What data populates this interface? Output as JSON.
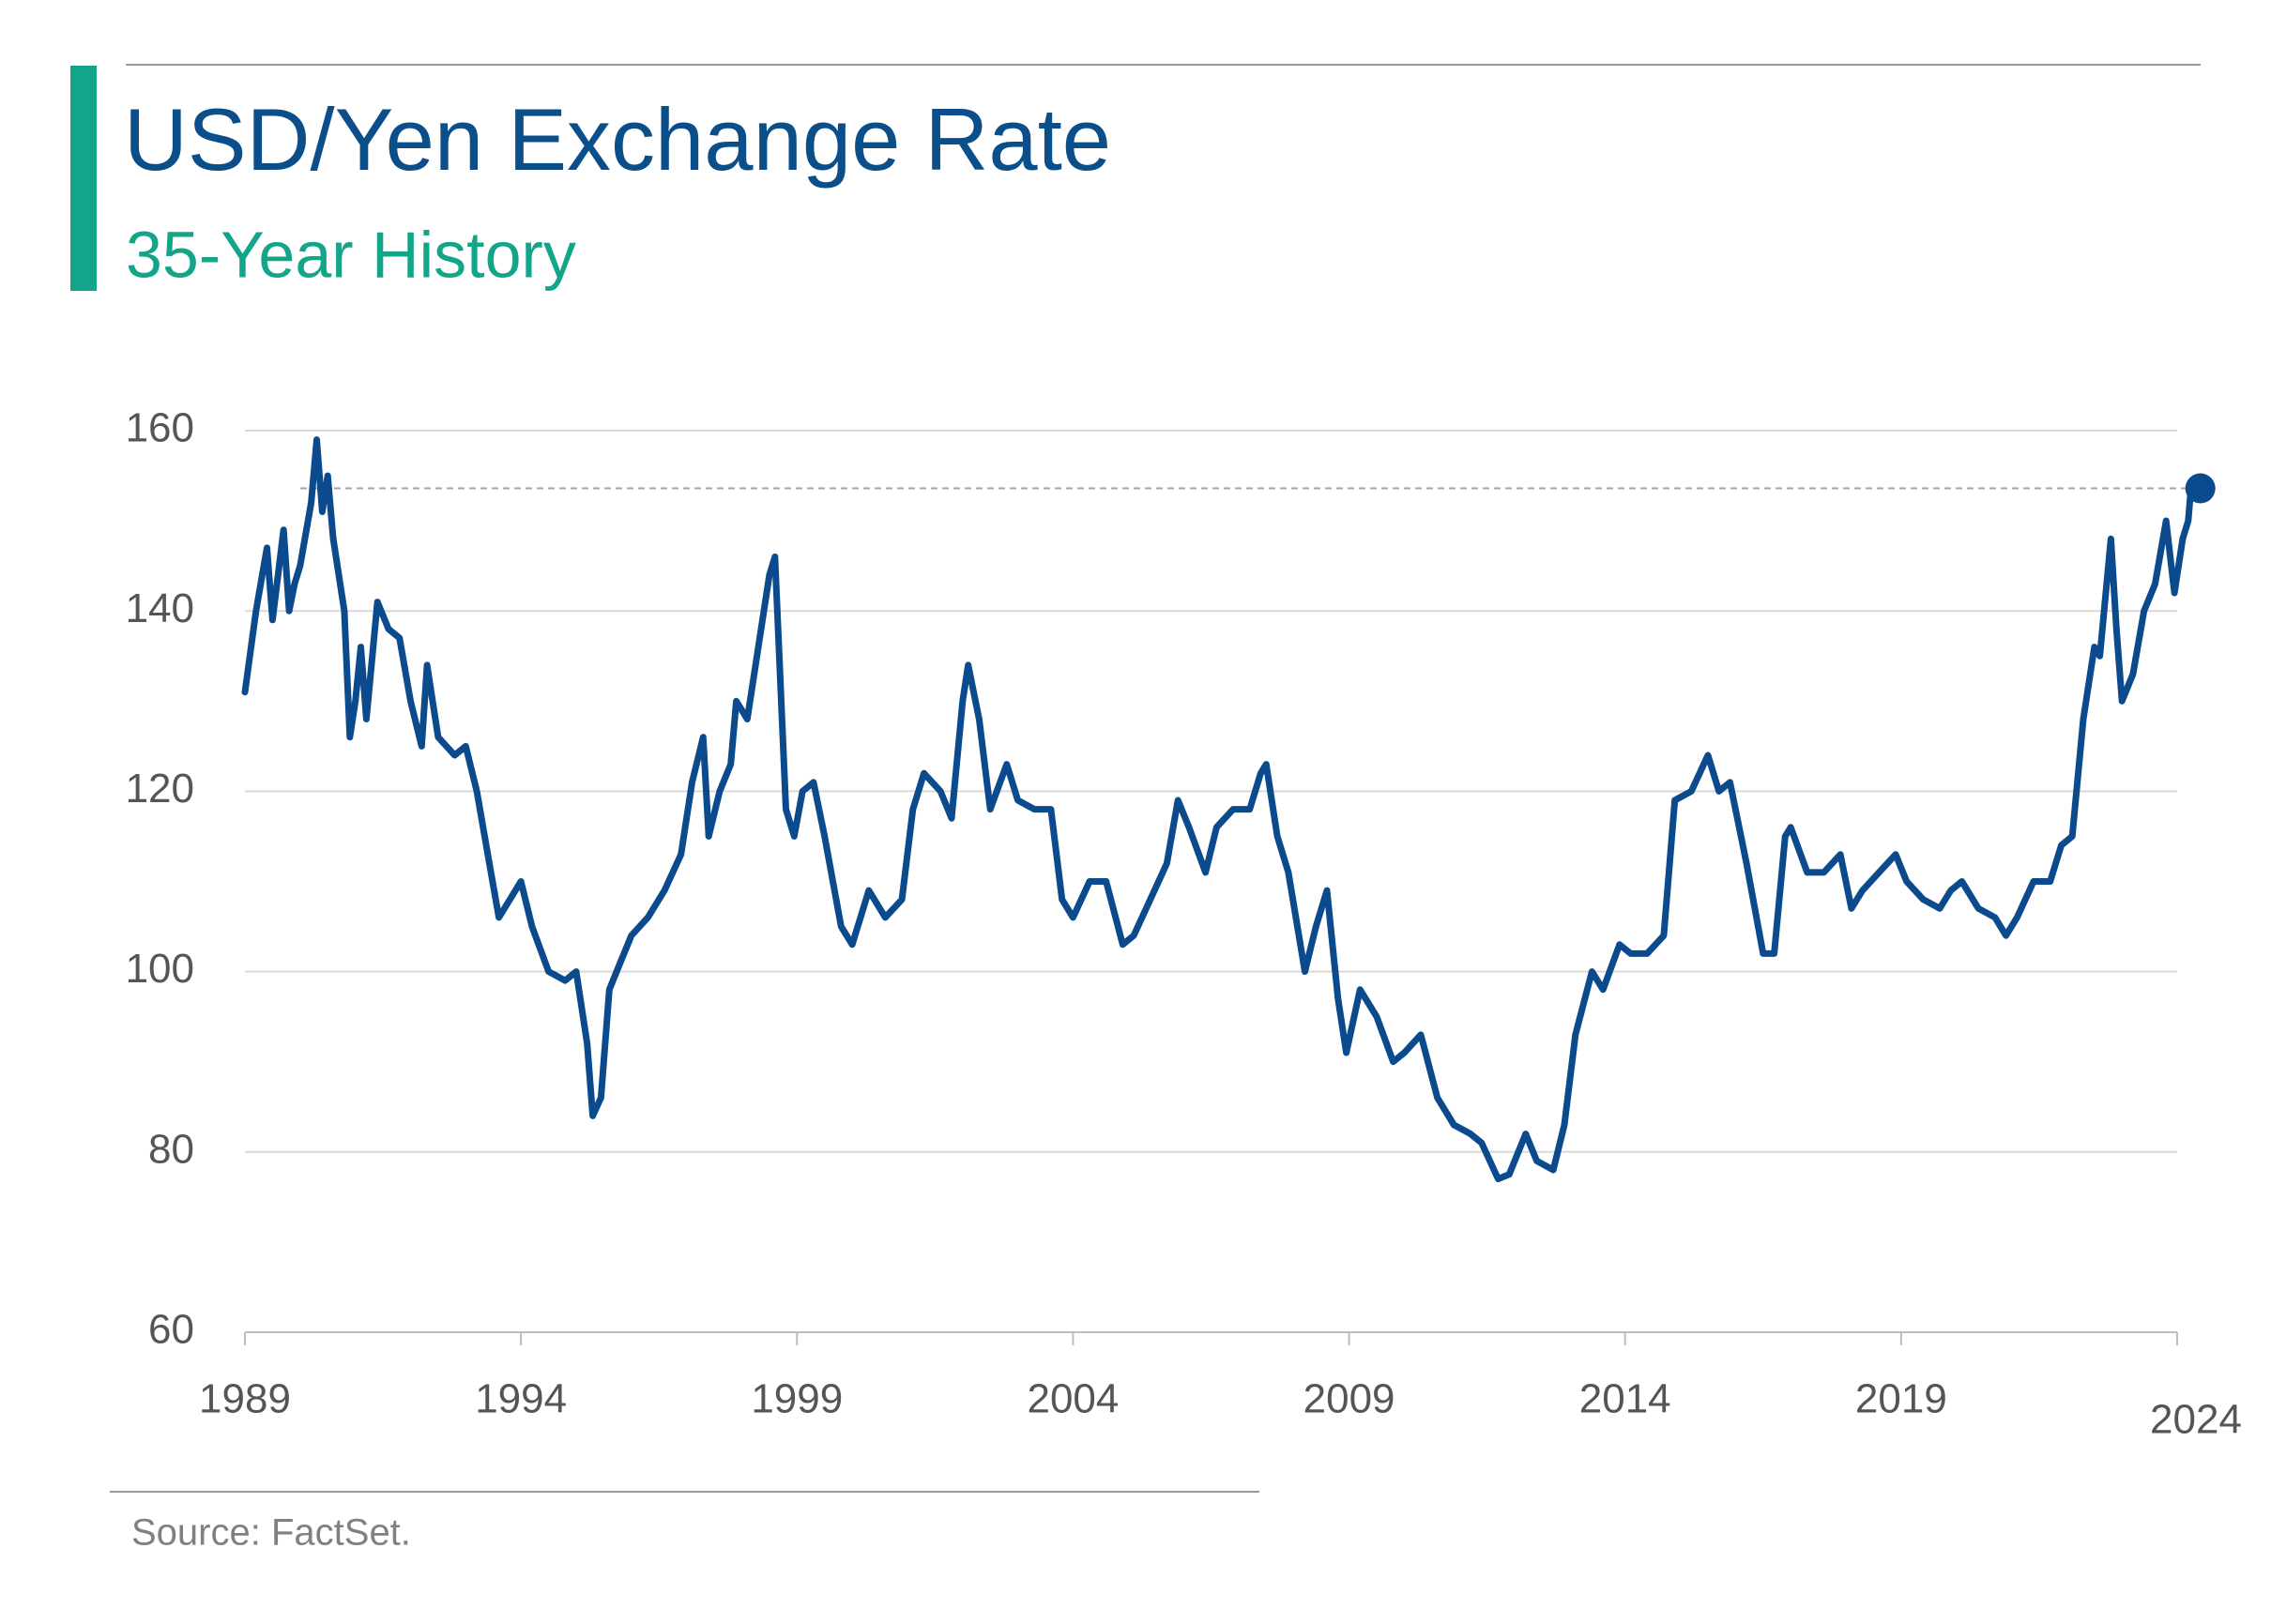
{
  "chart_data": {
    "type": "line",
    "title": "USD/Yen Exchange Rate",
    "subtitle": "35-Year History",
    "source": "Source: FactSet.",
    "color": "#0b4a8c",
    "grid": true,
    "xlim": [
      1989,
      2024
    ],
    "ylim": [
      60,
      160
    ],
    "yticks": [
      60,
      80,
      100,
      120,
      140,
      160
    ],
    "xticks": [
      1989,
      1994,
      1999,
      2004,
      2009,
      2014,
      2019,
      2024
    ],
    "x": [
      1989.0,
      1989.2,
      1989.4,
      1989.5,
      1989.7,
      1989.8,
      1989.9,
      1990.0,
      1990.2,
      1990.3,
      1990.4,
      1990.5,
      1990.6,
      1990.8,
      1990.9,
      1991.0,
      1991.1,
      1991.2,
      1991.4,
      1991.6,
      1991.8,
      1992.0,
      1992.2,
      1992.3,
      1992.5,
      1992.8,
      1993.0,
      1993.2,
      1993.4,
      1993.6,
      1993.8,
      1994.0,
      1994.2,
      1994.5,
      1994.8,
      1995.0,
      1995.2,
      1995.3,
      1995.45,
      1995.6,
      1995.8,
      1996.0,
      1996.3,
      1996.6,
      1996.9,
      1997.1,
      1997.3,
      1997.4,
      1997.6,
      1997.8,
      1997.9,
      1998.1,
      1998.3,
      1998.5,
      1998.6,
      1998.8,
      1998.95,
      1999.1,
      1999.3,
      1999.5,
      1999.8,
      2000.0,
      2000.3,
      2000.6,
      2000.9,
      2001.1,
      2001.3,
      2001.6,
      2001.8,
      2002.0,
      2002.1,
      2002.3,
      2002.5,
      2002.8,
      2003.0,
      2003.3,
      2003.6,
      2003.8,
      2004.0,
      2004.3,
      2004.6,
      2004.9,
      2005.1,
      2005.4,
      2005.7,
      2005.9,
      2006.1,
      2006.4,
      2006.6,
      2006.9,
      2007.2,
      2007.4,
      2007.5,
      2007.7,
      2007.9,
      2008.2,
      2008.4,
      2008.6,
      2008.8,
      2008.95,
      2009.2,
      2009.5,
      2009.8,
      2010.0,
      2010.3,
      2010.6,
      2010.9,
      2011.2,
      2011.4,
      2011.7,
      2011.9,
      2012.2,
      2012.4,
      2012.7,
      2012.9,
      2013.1,
      2013.4,
      2013.6,
      2013.9,
      2014.1,
      2014.4,
      2014.7,
      2014.9,
      2015.2,
      2015.5,
      2015.7,
      2015.9,
      2016.2,
      2016.5,
      2016.7,
      2016.9,
      2017.0,
      2017.3,
      2017.6,
      2017.9,
      2018.1,
      2018.3,
      2018.6,
      2018.9,
      2019.1,
      2019.4,
      2019.7,
      2019.9,
      2020.1,
      2020.4,
      2020.7,
      2020.9,
      2021.1,
      2021.4,
      2021.7,
      2021.9,
      2022.1,
      2022.3,
      2022.5,
      2022.6,
      2022.8,
      2022.9,
      2023.0,
      2023.2,
      2023.4,
      2023.6,
      2023.8,
      2023.95,
      2024.1,
      2024.2,
      2024.25
    ],
    "values": [
      131,
      140,
      147,
      139,
      149,
      140,
      143,
      145,
      152,
      159,
      151,
      155,
      148,
      140,
      126,
      130,
      136,
      128,
      141,
      138,
      137,
      130,
      125,
      134,
      126,
      124,
      125,
      120,
      113,
      106,
      108,
      110,
      105,
      100,
      99,
      100,
      92,
      84,
      86,
      98,
      101,
      104,
      106,
      109,
      113,
      121,
      126,
      115,
      120,
      123,
      130,
      128,
      136,
      144,
      146,
      118,
      115,
      120,
      121,
      115,
      105,
      103,
      109,
      106,
      108,
      118,
      122,
      120,
      117,
      130,
      134,
      128,
      118,
      123,
      119,
      118,
      118,
      108,
      106,
      110,
      110,
      103,
      104,
      108,
      112,
      119,
      116,
      111,
      116,
      118,
      118,
      122,
      123,
      115,
      111,
      100,
      105,
      109,
      97,
      91,
      98,
      95,
      90,
      91,
      93,
      86,
      83,
      82,
      81,
      77,
      77.5,
      82,
      79,
      78,
      83,
      93,
      100,
      98,
      103,
      102,
      102,
      104,
      119,
      120,
      124,
      120,
      121,
      112,
      102,
      102,
      115,
      116,
      111,
      111,
      113,
      107,
      109,
      111,
      113,
      110,
      108,
      107,
      109,
      110,
      107,
      106,
      104,
      106,
      110,
      110,
      114,
      115,
      128,
      136,
      135,
      148,
      138,
      130,
      133,
      140,
      143,
      150,
      142,
      148,
      150,
      153.6
    ]
  }
}
